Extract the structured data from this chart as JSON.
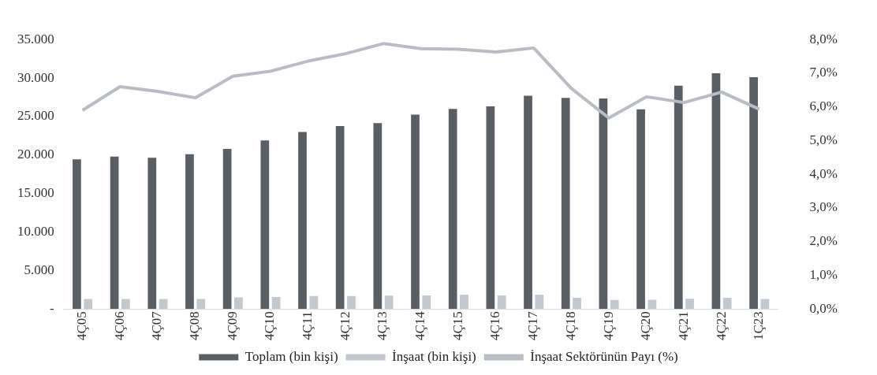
{
  "chart_data": {
    "type": "bar",
    "categories": [
      "4Ç05",
      "4Ç06",
      "4Ç07",
      "4Ç08",
      "4Ç09",
      "4Ç10",
      "4Ç11",
      "4Ç12",
      "4Ç13",
      "4Ç14",
      "4Ç15",
      "4Ç16",
      "4Ç17",
      "4Ç18",
      "4Ç19",
      "4Ç20",
      "4Ç21",
      "4Ç22",
      "1Ç23"
    ],
    "series": [
      {
        "name": "Toplam (bin kişi)",
        "color": "#5a5f66",
        "values": [
          19450,
          19800,
          19630,
          20100,
          20800,
          21900,
          23000,
          23770,
          24140,
          25250,
          25980,
          26320,
          27690,
          27420,
          27340,
          25940,
          29020,
          30620,
          30120
        ]
      },
      {
        "name": "İnşaat (bin kişi)",
        "color": "#c2c7d0",
        "values": [
          1300,
          1300,
          1300,
          1300,
          1490,
          1560,
          1670,
          1670,
          1740,
          1750,
          1850,
          1750,
          1850,
          1440,
          1180,
          1200,
          1330,
          1440,
          1300
        ]
      },
      {
        "name": "İnşaat Sektörünün Payı (%)",
        "type": "line",
        "axis": "y2",
        "color": "#b8bcc4",
        "values": [
          5.9,
          6.6,
          6.46,
          6.27,
          6.91,
          7.06,
          7.36,
          7.58,
          7.88,
          7.73,
          7.71,
          7.63,
          7.75,
          6.55,
          5.67,
          6.3,
          6.13,
          6.44,
          5.93
        ]
      }
    ],
    "ylim": [
      0,
      35000
    ],
    "yticks": [
      {
        "value": 0,
        "label": "-"
      },
      {
        "value": 5000,
        "label": "5.000"
      },
      {
        "value": 10000,
        "label": "10.000"
      },
      {
        "value": 15000,
        "label": "15.000"
      },
      {
        "value": 20000,
        "label": "20.000"
      },
      {
        "value": 25000,
        "label": "25.000"
      },
      {
        "value": 30000,
        "label": "30.000"
      },
      {
        "value": 35000,
        "label": "35.000"
      }
    ],
    "y2lim": [
      0,
      8
    ],
    "y2ticks": [
      {
        "value": 0,
        "label": "0,0%"
      },
      {
        "value": 1,
        "label": "1,0%"
      },
      {
        "value": 2,
        "label": "2,0%"
      },
      {
        "value": 3,
        "label": "3,0%"
      },
      {
        "value": 4,
        "label": "4,0%"
      },
      {
        "value": 5,
        "label": "5,0%"
      },
      {
        "value": 6,
        "label": "6,0%"
      },
      {
        "value": 7,
        "label": "7,0%"
      },
      {
        "value": 8,
        "label": "8,0%"
      }
    ],
    "grid": false,
    "legend": "bottom",
    "marker": "none"
  }
}
